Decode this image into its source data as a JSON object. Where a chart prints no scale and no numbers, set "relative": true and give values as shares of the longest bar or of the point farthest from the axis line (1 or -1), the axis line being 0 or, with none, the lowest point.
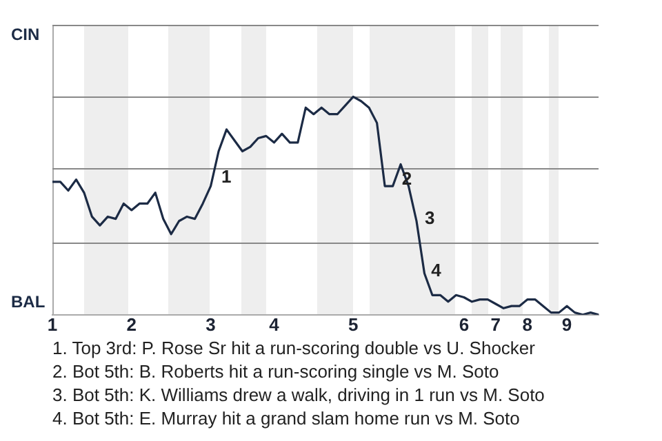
{
  "chart_data": {
    "type": "line",
    "categories": [
      "1",
      null,
      null,
      null,
      null,
      null,
      null,
      null,
      null,
      null,
      "2",
      null,
      null,
      null,
      null,
      null,
      null,
      null,
      null,
      null,
      "3",
      null,
      null,
      null,
      null,
      null,
      null,
      null,
      "4",
      null,
      null,
      null,
      null,
      null,
      null,
      null,
      null,
      null,
      "5",
      null,
      null,
      null,
      null,
      null,
      null,
      null,
      null,
      null,
      null,
      null,
      null,
      null,
      "6",
      null,
      null,
      null,
      "7",
      null,
      null,
      null,
      "8",
      null,
      null,
      null,
      null,
      "9",
      null,
      null,
      null,
      null
    ],
    "relative": true,
    "series": [
      {
        "color": "#1c2b45",
        "values": [
          0.61,
          0.61,
          0.57,
          0.62,
          0.56,
          0.45,
          0.41,
          0.45,
          0.44,
          0.51,
          0.48,
          0.51,
          0.51,
          0.56,
          0.44,
          0.37,
          0.43,
          0.45,
          0.44,
          0.51,
          0.59,
          0.75,
          0.85,
          0.8,
          0.75,
          0.77,
          0.81,
          0.82,
          0.79,
          0.83,
          0.79,
          0.79,
          0.95,
          0.92,
          0.95,
          0.92,
          0.92,
          0.96,
          1,
          0.98,
          0.95,
          0.88,
          0.59,
          0.59,
          0.69,
          0.59,
          0.43,
          0.19,
          0.09,
          0.09,
          0.06,
          0.09,
          0.08,
          0.06,
          0.07,
          0.07,
          0.05,
          0.03,
          0.04,
          0.04,
          0.07,
          0.07,
          0.04,
          0.01,
          0.01,
          0.04,
          0.01,
          0,
          0.01,
          0
        ]
      }
    ],
    "annotations": [
      "CIN",
      "BAL",
      "1",
      "2",
      "3",
      "4",
      "1. Top 3rd: P. Rose Sr hit a run-scoring double vs U. Shocker",
      "2. Bot 5th: B. Roberts hit a run-scoring single vs M. Soto",
      "3. Bot 5th: K. Williams drew a walk, driving in 1 run vs M. Soto",
      "4. Bot 5th: E. Murray hit a grand slam home run vs M. Soto"
    ],
    "ref_lines": [
      {
        "axis": "y",
        "value": 0.33,
        "color": "#888888"
      },
      {
        "axis": "y",
        "value": 0.67,
        "color": "#888888"
      },
      {
        "axis": "y",
        "value": 1,
        "color": "#888888"
      },
      {
        "axis": "y",
        "value": 1.33,
        "color": "#888888"
      }
    ],
    "grid": false,
    "legend": false,
    "marker": "none",
    "line_style": "solid"
  }
}
